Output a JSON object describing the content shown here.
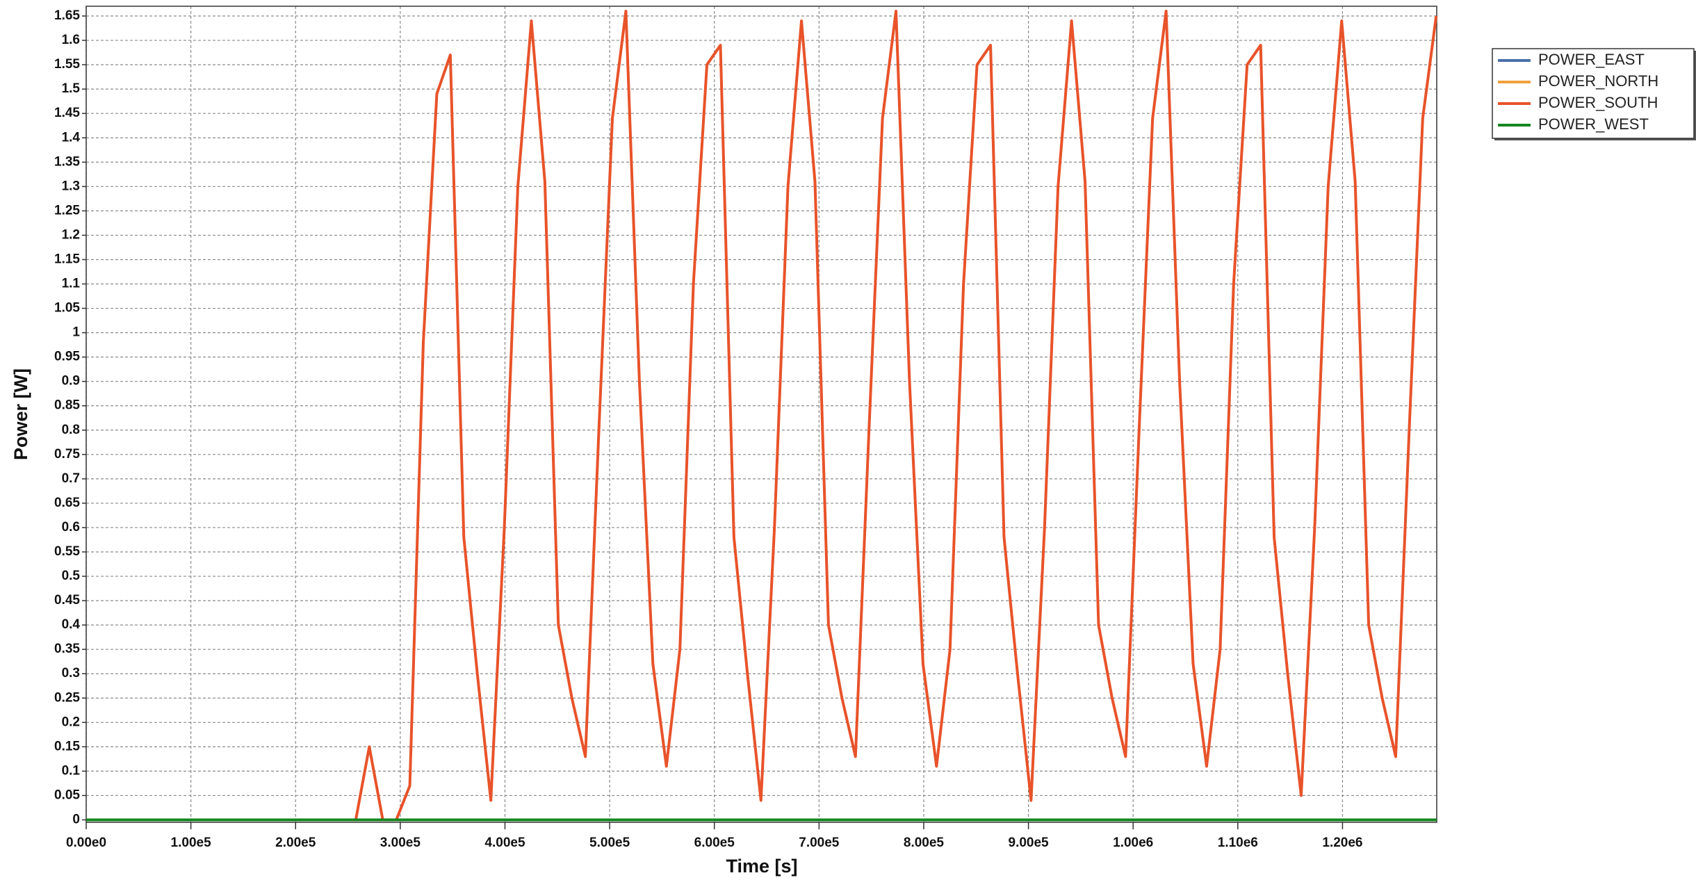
{
  "chart_data": {
    "type": "line",
    "xlabel": "Time [s]",
    "ylabel": "Power [W]",
    "xlim": [
      0,
      1290000
    ],
    "ylim": [
      -0.005,
      1.67
    ],
    "xticks": [
      {
        "value": 0,
        "label": "0.00e0"
      },
      {
        "value": 100000,
        "label": "1.00e5"
      },
      {
        "value": 200000,
        "label": "2.00e5"
      },
      {
        "value": 300000,
        "label": "3.00e5"
      },
      {
        "value": 400000,
        "label": "4.00e5"
      },
      {
        "value": 500000,
        "label": "5.00e5"
      },
      {
        "value": 600000,
        "label": "6.00e5"
      },
      {
        "value": 700000,
        "label": "7.00e5"
      },
      {
        "value": 800000,
        "label": "8.00e5"
      },
      {
        "value": 900000,
        "label": "9.00e5"
      },
      {
        "value": 1000000,
        "label": "1.00e6"
      },
      {
        "value": 1100000,
        "label": "1.10e6"
      },
      {
        "value": 1200000,
        "label": "1.20e6"
      }
    ],
    "yticks": [
      0,
      0.05,
      0.1,
      0.15,
      0.2,
      0.25,
      0.3,
      0.35,
      0.4,
      0.45,
      0.5,
      0.55,
      0.6,
      0.65,
      0.7,
      0.75,
      0.8,
      0.85,
      0.9,
      0.95,
      1,
      1.05,
      1.1,
      1.15,
      1.2,
      1.25,
      1.3,
      1.35,
      1.4,
      1.45,
      1.5,
      1.55,
      1.6,
      1.65
    ],
    "grid": true,
    "legend": "upper right",
    "series": [
      {
        "name": "POWER_EAST",
        "color": "#4a6fa8",
        "x": [
          0,
          1290000
        ],
        "values": [
          0,
          0
        ]
      },
      {
        "name": "POWER_NORTH",
        "color": "#f0a13c",
        "x": [
          0,
          1290000
        ],
        "values": [
          0,
          0
        ]
      },
      {
        "name": "POWER_SOUTH",
        "color": "#e8532a",
        "x": [
          0,
          257500,
          270400,
          283300,
          296200,
          309100,
          322000,
          334900,
          347800,
          360700,
          373600,
          386500,
          399400,
          412300,
          425200,
          438100,
          451000,
          463900,
          476800,
          489700,
          502600,
          515500,
          528400,
          541300,
          554200,
          567100,
          580000,
          592900,
          605800,
          618700,
          631600,
          644500,
          657400,
          670300,
          683200,
          696100,
          709000,
          721900,
          734800,
          747700,
          760600,
          773500,
          786400,
          799300,
          812200,
          825100,
          838000,
          850900,
          863800,
          876700,
          889600,
          902500,
          915400,
          928300,
          941200,
          954100,
          967000,
          979900,
          992800,
          1005700,
          1018600,
          1031500,
          1044400,
          1057300,
          1070200,
          1083100,
          1096000,
          1108900,
          1121800,
          1134700,
          1147600,
          1160500,
          1173400,
          1186300,
          1199200,
          1212100,
          1225000,
          1237900,
          1250800,
          1263700,
          1276600,
          1289500
        ],
        "values": [
          0,
          0,
          0.15,
          0,
          0,
          0.07,
          0.98,
          1.49,
          1.57,
          0.58,
          0.3,
          0.04,
          0.6,
          1.3,
          1.64,
          1.31,
          0.4,
          0.25,
          0.13,
          0.8,
          1.44,
          1.66,
          0.9,
          0.32,
          0.11,
          0.35,
          1.1,
          1.55,
          1.59,
          0.58,
          0.3,
          0.04,
          0.6,
          1.3,
          1.64,
          1.31,
          0.4,
          0.25,
          0.13,
          0.8,
          1.44,
          1.66,
          0.9,
          0.32,
          0.11,
          0.35,
          1.1,
          1.55,
          1.59,
          0.58,
          0.3,
          0.04,
          0.6,
          1.3,
          1.64,
          1.31,
          0.4,
          0.25,
          0.13,
          0.8,
          1.44,
          1.66,
          0.9,
          0.32,
          0.11,
          0.35,
          1.1,
          1.55,
          1.59,
          0.58,
          0.3,
          0.05,
          0.6,
          1.3,
          1.64,
          1.31,
          0.4,
          0.25,
          0.13,
          0.8,
          1.44,
          1.65
        ]
      },
      {
        "name": "POWER_WEST",
        "color": "#14861e",
        "x": [
          0,
          1290000
        ],
        "values": [
          0,
          0
        ]
      }
    ]
  }
}
